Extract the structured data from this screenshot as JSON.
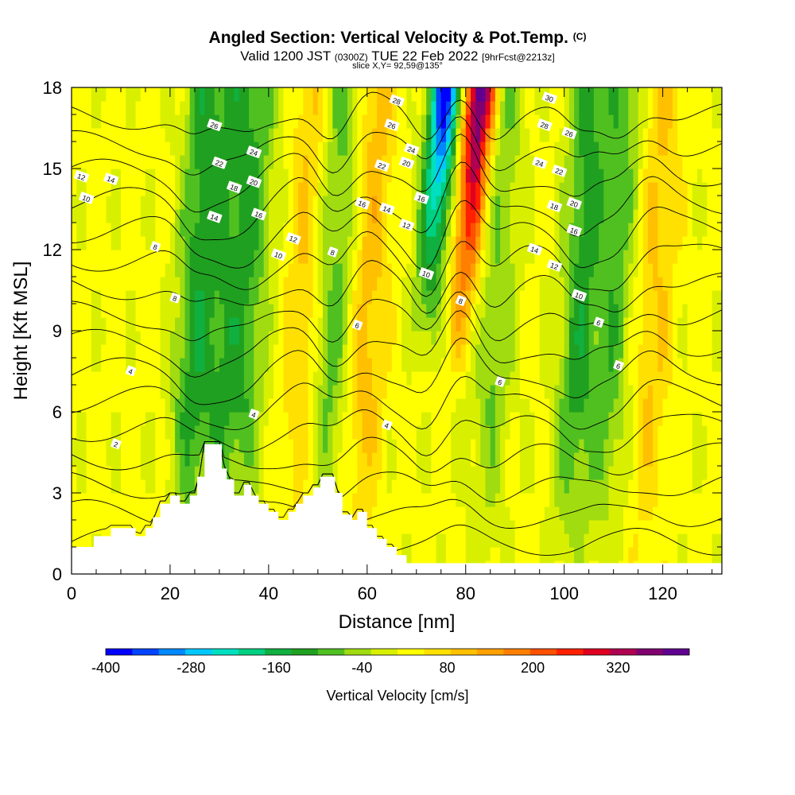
{
  "header": {
    "title": "Angled Section: Vertical Velocity & Pot.Temp.",
    "title_mark": "(C)",
    "valid_prefix": "Valid 1200 JST",
    "valid_zulu": "(0300Z)",
    "valid_date": "TUE 22 Feb 2022",
    "valid_fcst": "[9hrFcst@2213z]",
    "slice": "slice X,Y= 92,59@135°"
  },
  "chart_data": {
    "type": "heatmap",
    "title": "Angled Section: Vertical Velocity & Pot.Temp.",
    "xlabel": "Distance [nm]",
    "ylabel": "Height [Kft MSL]",
    "xlim": [
      0,
      132
    ],
    "ylim": [
      0,
      18
    ],
    "x_ticks": [
      "0",
      "20",
      "40",
      "60",
      "80",
      "100",
      "120"
    ],
    "y_ticks": [
      "0",
      "3",
      "6",
      "9",
      "12",
      "15",
      "18"
    ],
    "colorbar": {
      "label": "Vertical Velocity [cm/s]",
      "ticks": [
        "-400",
        "-280",
        "-160",
        "-40",
        "80",
        "200",
        "320"
      ],
      "bounds": [
        -400,
        420
      ],
      "colors": [
        "#0000ff",
        "#0044ff",
        "#0088ff",
        "#00c8ff",
        "#00e0c0",
        "#00d080",
        "#10b040",
        "#20a020",
        "#50c020",
        "#a0dc10",
        "#d8f000",
        "#ffff00",
        "#ffe000",
        "#ffc000",
        "#ffa000",
        "#ff8000",
        "#ff5000",
        "#ff2000",
        "#e00020",
        "#b00050",
        "#800070",
        "#600090"
      ]
    },
    "velocity_features": [
      {
        "x": 25,
        "sign": "down",
        "strength": 0.8
      },
      {
        "x": 31,
        "sign": "down",
        "strength": 0.6
      },
      {
        "x": 36,
        "sign": "down",
        "strength": 0.6
      },
      {
        "x": 47,
        "sign": "up",
        "strength": 0.4
      },
      {
        "x": 53,
        "sign": "down",
        "strength": 0.6
      },
      {
        "x": 60,
        "sign": "up",
        "strength": 0.5
      },
      {
        "x": 72,
        "sign": "down",
        "strength": 1.0
      },
      {
        "x": 79,
        "sign": "up",
        "strength": 1.0
      },
      {
        "x": 86,
        "sign": "down",
        "strength": 0.5
      },
      {
        "x": 103,
        "sign": "down",
        "strength": 0.8
      },
      {
        "x": 110,
        "sign": "down",
        "strength": 0.6
      },
      {
        "x": 118,
        "sign": "up",
        "strength": 0.4
      }
    ],
    "theta_contour_labels": [
      {
        "text": "2",
        "x": 9,
        "y": 4.8
      },
      {
        "text": "4",
        "x": 12,
        "y": 7.5
      },
      {
        "text": "4",
        "x": 37,
        "y": 5.9
      },
      {
        "text": "4",
        "x": 64,
        "y": 5.5
      },
      {
        "text": "6",
        "x": 58,
        "y": 9.2
      },
      {
        "text": "6",
        "x": 87,
        "y": 7.1
      },
      {
        "text": "6",
        "x": 107,
        "y": 9.3
      },
      {
        "text": "6",
        "x": 111,
        "y": 7.7
      },
      {
        "text": "8",
        "x": 21,
        "y": 10.2
      },
      {
        "text": "8",
        "x": 17,
        "y": 12.1
      },
      {
        "text": "8",
        "x": 53,
        "y": 11.9
      },
      {
        "text": "8",
        "x": 79,
        "y": 10.1
      },
      {
        "text": "10",
        "x": 3,
        "y": 13.9
      },
      {
        "text": "10",
        "x": 42,
        "y": 11.8
      },
      {
        "text": "10",
        "x": 72,
        "y": 11.1
      },
      {
        "text": "10",
        "x": 103,
        "y": 10.3
      },
      {
        "text": "12",
        "x": 2,
        "y": 14.7
      },
      {
        "text": "12",
        "x": 45,
        "y": 12.4
      },
      {
        "text": "12",
        "x": 68,
        "y": 12.9
      },
      {
        "text": "12",
        "x": 98,
        "y": 11.4
      },
      {
        "text": "14",
        "x": 8,
        "y": 14.6
      },
      {
        "text": "14",
        "x": 29,
        "y": 13.2
      },
      {
        "text": "14",
        "x": 64,
        "y": 13.5
      },
      {
        "text": "14",
        "x": 94,
        "y": 12.0
      },
      {
        "text": "16",
        "x": 38,
        "y": 13.3
      },
      {
        "text": "16",
        "x": 59,
        "y": 13.7
      },
      {
        "text": "16",
        "x": 71,
        "y": 13.9
      },
      {
        "text": "16",
        "x": 102,
        "y": 12.7
      },
      {
        "text": "18",
        "x": 33,
        "y": 14.3
      },
      {
        "text": "18",
        "x": 98,
        "y": 13.6
      },
      {
        "text": "20",
        "x": 37,
        "y": 14.5
      },
      {
        "text": "20",
        "x": 68,
        "y": 15.2
      },
      {
        "text": "20",
        "x": 102,
        "y": 13.7
      },
      {
        "text": "22",
        "x": 30,
        "y": 15.2
      },
      {
        "text": "22",
        "x": 63,
        "y": 15.1
      },
      {
        "text": "22",
        "x": 99,
        "y": 14.9
      },
      {
        "text": "24",
        "x": 37,
        "y": 15.6
      },
      {
        "text": "24",
        "x": 69,
        "y": 15.7
      },
      {
        "text": "24",
        "x": 95,
        "y": 15.2
      },
      {
        "text": "26",
        "x": 29,
        "y": 16.6
      },
      {
        "text": "26",
        "x": 65,
        "y": 16.6
      },
      {
        "text": "26",
        "x": 101,
        "y": 16.3
      },
      {
        "text": "28",
        "x": 66,
        "y": 17.5
      },
      {
        "text": "28",
        "x": 96,
        "y": 16.6
      },
      {
        "text": "30",
        "x": 97,
        "y": 17.6
      }
    ]
  }
}
